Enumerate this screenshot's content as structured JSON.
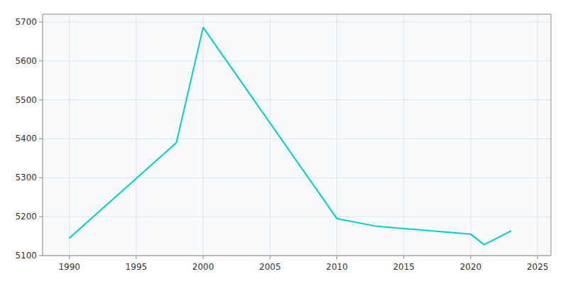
{
  "chart_data": {
    "type": "line",
    "x": [
      1990,
      1998,
      2000,
      2010,
      2013,
      2020,
      2021,
      2023
    ],
    "values": [
      5145,
      5390,
      5686,
      5195,
      5175,
      5155,
      5128,
      5163
    ],
    "color": "#00CED1",
    "xlim": [
      1988,
      2026
    ],
    "ylim": [
      5100,
      5720
    ],
    "xticks": [
      1990,
      1995,
      2000,
      2005,
      2010,
      2015,
      2020,
      2025
    ],
    "yticks": [
      5100,
      5200,
      5300,
      5400,
      5500,
      5600,
      5700
    ],
    "grid": true
  }
}
